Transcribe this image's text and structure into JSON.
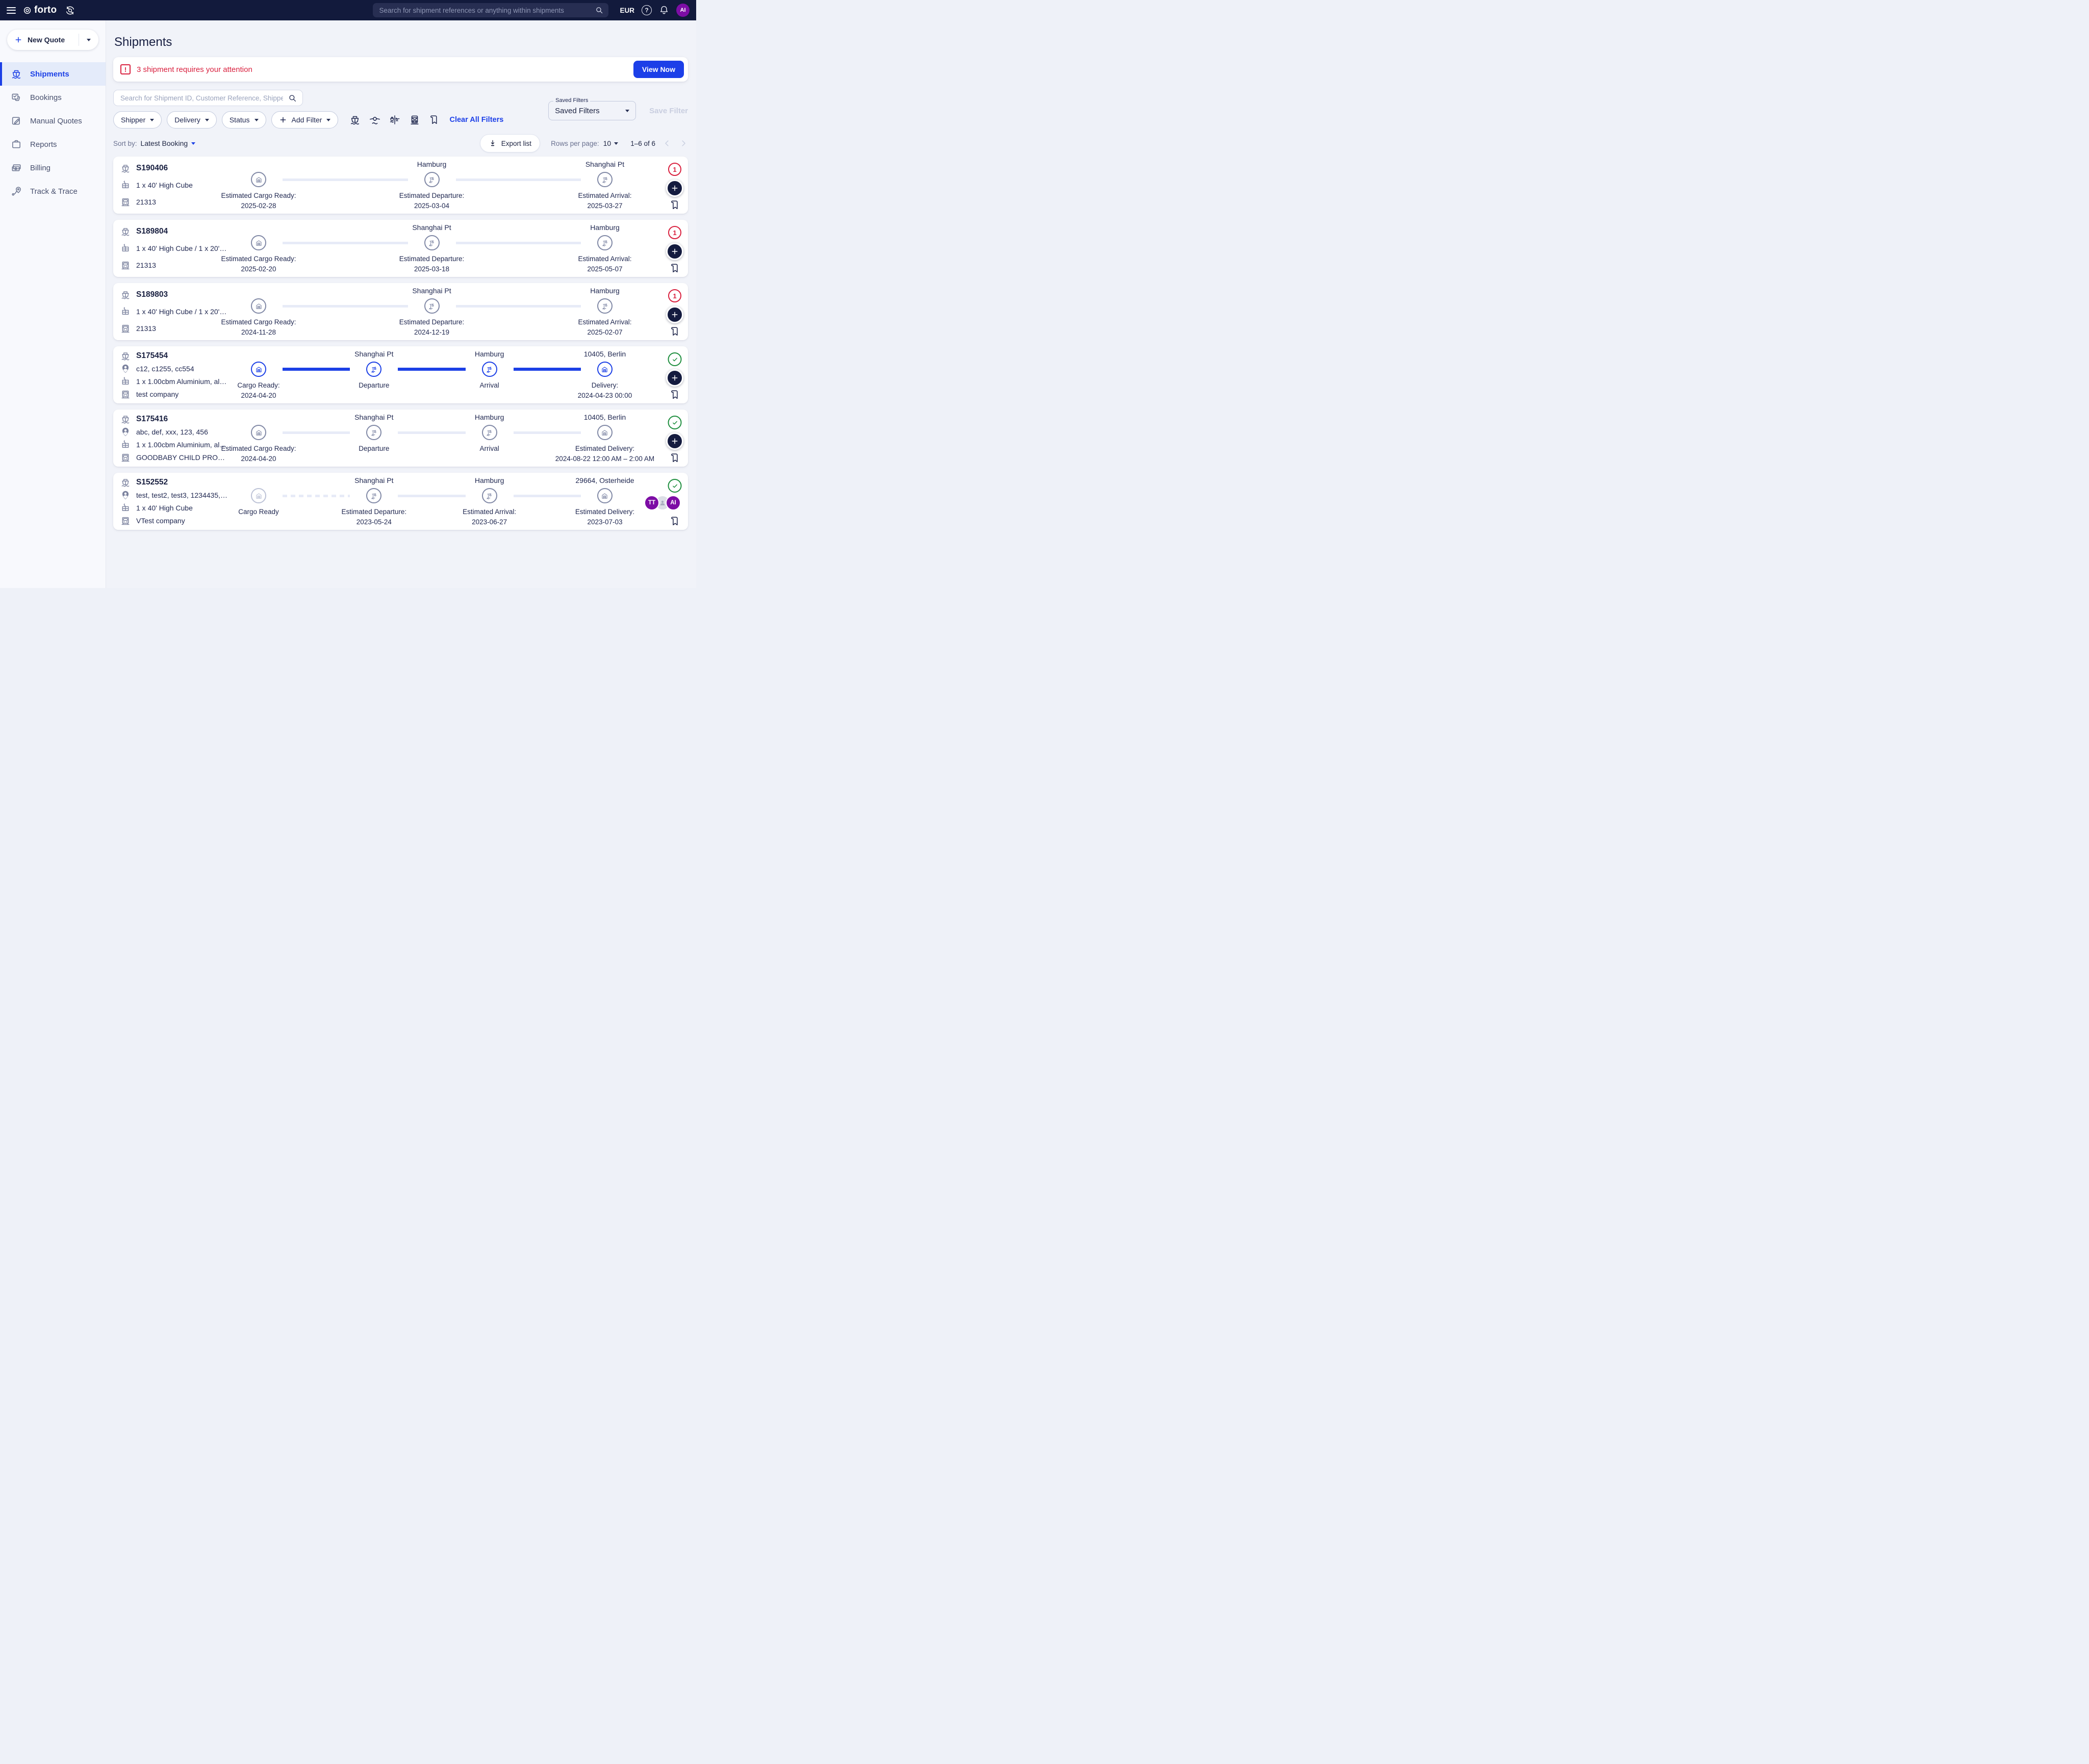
{
  "topbar": {
    "logo_text": "forto",
    "search_placeholder": "Search for shipment references or anything within shipments",
    "currency": "EUR",
    "avatar_initials": "AI"
  },
  "sidebar": {
    "new_quote_label": "New Quote",
    "items": [
      {
        "label": "Shipments",
        "active": true
      },
      {
        "label": "Bookings",
        "active": false
      },
      {
        "label": "Manual Quotes",
        "active": false
      },
      {
        "label": "Reports",
        "active": false
      },
      {
        "label": "Billing",
        "active": false
      },
      {
        "label": "Track & Trace",
        "active": false
      }
    ]
  },
  "page": {
    "title": "Shipments",
    "alert": {
      "message": "3 shipment requires your attention",
      "action_label": "View Now"
    },
    "search_placeholder": "Search for Shipment ID, Customer Reference, Shipper...",
    "filter_pills": [
      "Shipper",
      "Delivery",
      "Status"
    ],
    "add_filter_label": "Add Filter",
    "mode_icons": [
      "ocean-ship-icon",
      "air-plane-icon",
      "sea-air-icon",
      "rail-icon",
      "bookmark-icon"
    ],
    "clear_all_label": "Clear All Filters",
    "saved_filters": {
      "label": "Saved Filters",
      "value": "Saved Filters"
    },
    "save_filter_label": "Save Filter",
    "toolbar": {
      "sort_by_label": "Sort by:",
      "sort_by_value": "Latest Booking",
      "export_label": "Export list",
      "rows_per_page_label": "Rows per page:",
      "rows_per_page_value": "10",
      "range_label": "1–6 of 6"
    }
  },
  "colors": {
    "accent_blue": "#1c40e6",
    "topbar_navy": "#121a3c",
    "alert_red": "#d9213f",
    "success_green": "#1e8e3e",
    "avatar_purple": "#7d0da5"
  },
  "shipments": [
    {
      "id": "S190406",
      "customer_refs": null,
      "cargo": "1 x 40' High Cube",
      "company": "21313",
      "badge": {
        "type": "alert",
        "count": "1"
      },
      "avatars": null,
      "segments": [
        "light",
        "light"
      ],
      "milestones": [
        {
          "city": "",
          "label": "Estimated Cargo Ready:",
          "date": "2025-02-28",
          "icon": "warehouse",
          "state": "gray"
        },
        {
          "city": "Hamburg",
          "label": "Estimated Departure:",
          "date": "2025-03-04",
          "icon": "port",
          "state": "gray"
        },
        {
          "city": "Shanghai Pt",
          "label": "Estimated Arrival:",
          "date": "2025-03-27",
          "icon": "port",
          "state": "gray"
        }
      ]
    },
    {
      "id": "S189804",
      "customer_refs": null,
      "cargo": "1 x 40' High Cube / 1 x 20' Sta…",
      "company": "21313",
      "badge": {
        "type": "alert",
        "count": "1"
      },
      "avatars": null,
      "segments": [
        "light",
        "light"
      ],
      "milestones": [
        {
          "city": "",
          "label": "Estimated Cargo Ready:",
          "date": "2025-02-20",
          "icon": "warehouse",
          "state": "gray"
        },
        {
          "city": "Shanghai Pt",
          "label": "Estimated Departure:",
          "date": "2025-03-18",
          "icon": "port",
          "state": "gray"
        },
        {
          "city": "Hamburg",
          "label": "Estimated Arrival:",
          "date": "2025-05-07",
          "icon": "port",
          "state": "gray"
        }
      ]
    },
    {
      "id": "S189803",
      "customer_refs": null,
      "cargo": "1 x 40' High Cube / 1 x 20' Sta…",
      "company": "21313",
      "badge": {
        "type": "alert",
        "count": "1"
      },
      "avatars": null,
      "segments": [
        "light",
        "light"
      ],
      "milestones": [
        {
          "city": "",
          "label": "Estimated Cargo Ready:",
          "date": "2024-11-28",
          "icon": "warehouse",
          "state": "gray"
        },
        {
          "city": "Shanghai Pt",
          "label": "Estimated Departure:",
          "date": "2024-12-19",
          "icon": "port",
          "state": "gray"
        },
        {
          "city": "Hamburg",
          "label": "Estimated Arrival:",
          "date": "2025-02-07",
          "icon": "port",
          "state": "gray"
        }
      ]
    },
    {
      "id": "S175454",
      "customer_refs": "c12, c1255, cc554",
      "cargo": "1 x 1.00cbm Aluminium, alumi…",
      "company": "test company",
      "badge": {
        "type": "check"
      },
      "avatars": null,
      "segments": [
        "blue",
        "blue",
        "blue"
      ],
      "milestones": [
        {
          "city": "",
          "label": "Cargo Ready:",
          "date": "2024-04-20",
          "icon": "warehouse",
          "state": "blue"
        },
        {
          "city": "Shanghai Pt",
          "label": "Departure",
          "date": "",
          "icon": "port",
          "state": "blue"
        },
        {
          "city": "Hamburg",
          "label": "Arrival",
          "date": "",
          "icon": "port",
          "state": "blue"
        },
        {
          "city": "10405, Berlin",
          "label": "Delivery:",
          "date": "2024-04-23 00:00",
          "icon": "warehouse",
          "state": "blue"
        }
      ]
    },
    {
      "id": "S175416",
      "customer_refs": "abc, def, xxx, 123, 456",
      "cargo": "1 x 1.00cbm Aluminium, alumi…",
      "company": "GOODBABY CHILD PRODUCTS…",
      "badge": {
        "type": "check"
      },
      "avatars": null,
      "segments": [
        "light",
        "light",
        "light"
      ],
      "milestones": [
        {
          "city": "",
          "label": "Estimated Cargo Ready:",
          "date": "2024-04-20",
          "icon": "warehouse",
          "state": "gray"
        },
        {
          "city": "Shanghai Pt",
          "label": "Departure",
          "date": "",
          "icon": "port",
          "state": "gray"
        },
        {
          "city": "Hamburg",
          "label": "Arrival",
          "date": "",
          "icon": "port",
          "state": "gray"
        },
        {
          "city": "10405, Berlin",
          "label": "Estimated Delivery:",
          "date": "2024-08-22 12:00 AM – 2:00 AM",
          "icon": "warehouse",
          "state": "gray"
        }
      ]
    },
    {
      "id": "S152552",
      "customer_refs": "test, test2, test3, 1234435, bla…",
      "cargo": "1 x 40' High Cube",
      "company": "VTest company",
      "badge": {
        "type": "check"
      },
      "avatars": [
        {
          "initials": "TT",
          "color": "#7d0da5"
        },
        {
          "initials": "",
          "color": "#dcdfe6",
          "icon": "user"
        },
        {
          "initials": "AI",
          "color": "#7d0da5"
        }
      ],
      "segments": [
        "dashed",
        "light",
        "light"
      ],
      "milestones": [
        {
          "city": "",
          "label": "Cargo Ready",
          "date": "",
          "icon": "warehouse",
          "state": "faded"
        },
        {
          "city": "Shanghai Pt",
          "label": "Estimated Departure:",
          "date": "2023-05-24",
          "icon": "port",
          "state": "gray"
        },
        {
          "city": "Hamburg",
          "label": "Estimated Arrival:",
          "date": "2023-06-27",
          "icon": "port",
          "state": "gray"
        },
        {
          "city": "29664, Osterheide",
          "label": "Estimated Delivery:",
          "date": "2023-07-03",
          "icon": "warehouse",
          "state": "gray"
        }
      ]
    }
  ]
}
